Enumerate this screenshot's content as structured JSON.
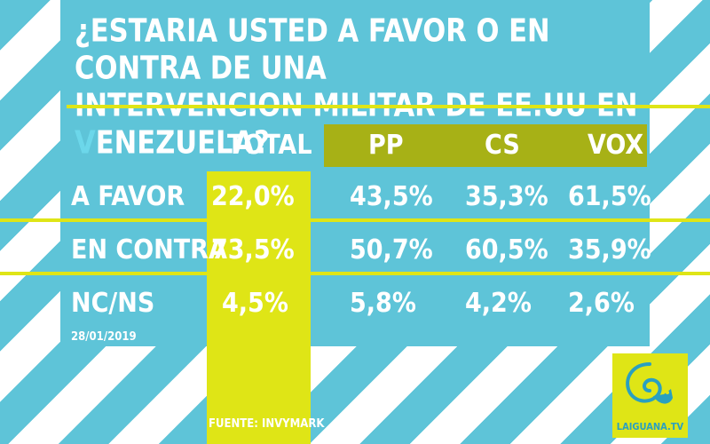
{
  "title_line1": "¿ESTARIA USTED A FAVOR O EN CONTRA DE UNA",
  "title_line2_pre": "INTERVENCION MILITAR DE EE.UU EN ",
  "title_line2_hl": "V",
  "title_line2_post": "ENEZUELA?",
  "date": "28/01/2019",
  "source": "FUENTE: INVYMARK",
  "logo_text": "LAIGUANA.TV",
  "colors": {
    "blue": "#5ec4d8",
    "yellow": "#dfe516",
    "olive": "#a7b116",
    "white": "#ffffff"
  },
  "chart_data": {
    "type": "table",
    "columns": [
      "TOTAL",
      "PP",
      "CS",
      "VOX"
    ],
    "rows": [
      {
        "label": "A FAVOR",
        "cells": [
          "22,0%",
          "43,5%",
          "35,3%",
          "61,5%"
        ]
      },
      {
        "label": "EN CONTRA",
        "cells": [
          "73,5%",
          "50,7%",
          "60,5%",
          "35,9%"
        ]
      },
      {
        "label": "NC/NS",
        "cells": [
          "4,5%",
          "5,8%",
          "4,2%",
          "2,6%"
        ]
      }
    ]
  }
}
